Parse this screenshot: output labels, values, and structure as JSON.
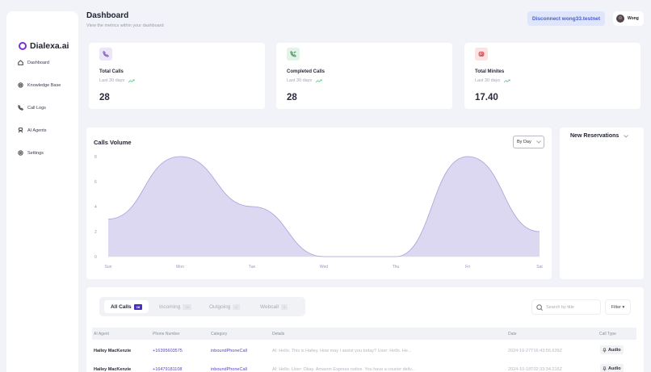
{
  "brand": {
    "name": "Dialexa.ai",
    "accent": "#7b2fd0"
  },
  "sidebar": {
    "items": [
      {
        "label": "Dashboard",
        "icon": "home-icon"
      },
      {
        "label": "Knowledge Base",
        "icon": "database-icon"
      },
      {
        "label": "Call Logs",
        "icon": "phone-icon"
      },
      {
        "label": "AI Agents",
        "icon": "robot-icon"
      },
      {
        "label": "Settings",
        "icon": "gear-icon"
      }
    ]
  },
  "header": {
    "title": "Dashboard",
    "subtitle": "View the metrics within your dashboard",
    "disconnect_label": "Disconnect wong33.testnet",
    "user_name": "Wong"
  },
  "stats": [
    {
      "label": "Total Calls",
      "period": "Last 30 days",
      "value": "28",
      "icon": "phone-icon",
      "icon_bg": "#ede6f8",
      "icon_color": "#8d6fc6"
    },
    {
      "label": "Completed Calls",
      "period": "Last 30 days",
      "value": "28",
      "icon": "phone-check-icon",
      "icon_bg": "#e3f3e8",
      "icon_color": "#5ca778"
    },
    {
      "label": "Total Minites",
      "period": "Last 30 days",
      "value": "17.40",
      "icon": "clock-icon",
      "icon_bg": "#fbe3e4",
      "icon_color": "#d9535a"
    }
  ],
  "chart": {
    "title": "Calls Volume",
    "range_select": "By Day"
  },
  "chart_data": {
    "type": "area",
    "title": "Calls Volume",
    "categories": [
      "Sun",
      "Mon",
      "Tue",
      "Wed",
      "Thu",
      "Fri",
      "Sat"
    ],
    "values": [
      3,
      8,
      4,
      0,
      0,
      8,
      2
    ],
    "xlabel": "",
    "ylabel": "",
    "yticks": [
      0,
      2,
      4,
      6,
      8
    ],
    "ylim": [
      0,
      8
    ],
    "grid": false,
    "legend": "none",
    "fill_color": "#dcd8f2",
    "line_color": "#a99fd8"
  },
  "reservations": {
    "title": "New Reservations"
  },
  "calls_table": {
    "tabs": [
      {
        "label": "All Calls",
        "count": "28"
      },
      {
        "label": "Incoming",
        "count": "28"
      },
      {
        "label": "Outgoing",
        "count": "0"
      },
      {
        "label": "Webcall",
        "count": "0"
      }
    ],
    "search_placeholder": "Search by title",
    "filter_label": "Filter",
    "columns": [
      "AI Agent",
      "Phone Number",
      "Category",
      "Details",
      "Date",
      "Call Type"
    ],
    "rows": [
      {
        "agent": "Hailey MacKenzie",
        "phone": "+16395603575",
        "category": "inboundPhoneCall",
        "details": "AI: Hello. This is Hailey. How may I assist you today? User: Hello. He...",
        "date": "2024-10-27T16:43:56.639Z",
        "type": "Audio"
      },
      {
        "agent": "Hailey MacKenzie",
        "phone": "+16479181108",
        "category": "inboundPhoneCall",
        "details": "AI: Hello. User: Okay. Amazon Express notice. You have a courier deliv...",
        "date": "2024-10-18T02:33:34.216Z",
        "type": "Audio"
      }
    ]
  }
}
